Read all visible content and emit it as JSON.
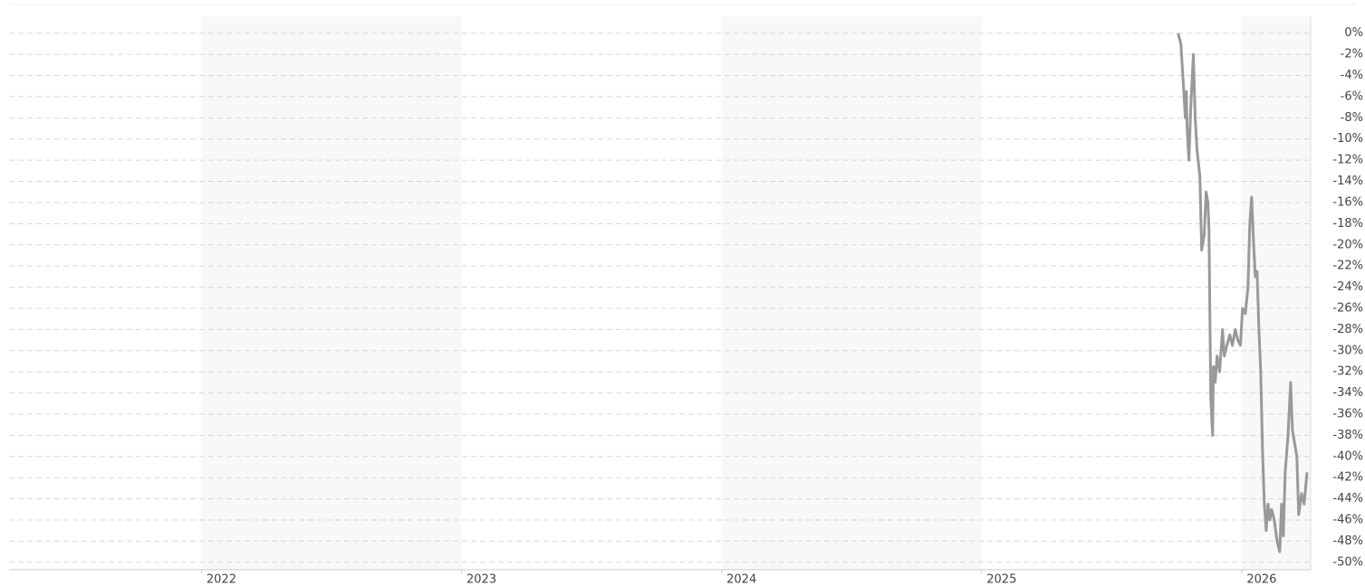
{
  "chart_data": {
    "type": "line",
    "x": [
      2025.755,
      2025.766,
      2025.776,
      2025.783,
      2025.787,
      2025.79,
      2025.797,
      2025.804,
      2025.814,
      2025.821,
      2025.828,
      2025.839,
      2025.846,
      2025.856,
      2025.863,
      2025.87,
      2025.874,
      2025.881,
      2025.888,
      2025.891,
      2025.898,
      2025.905,
      2025.915,
      2025.926,
      2025.933,
      2025.943,
      2025.954,
      2025.964,
      2025.975,
      2025.985,
      2025.995,
      2026.003,
      2026.014,
      2026.024,
      2026.031,
      2026.038,
      2026.045,
      2026.052,
      2026.059,
      2026.066,
      2026.073,
      2026.08,
      2026.087,
      2026.094,
      2026.101,
      2026.108,
      2026.115,
      2026.125,
      2026.136,
      2026.146,
      2026.153,
      2026.16,
      2026.167,
      2026.178,
      2026.188,
      2026.195,
      2026.205,
      2026.212,
      2026.219,
      2026.23,
      2026.24,
      2026.251
    ],
    "series": [
      {
        "color": "#999999",
        "values": [
          0,
          -1,
          -5,
          -8,
          -5.5,
          -9,
          -12,
          -7,
          -2,
          -8,
          -11,
          -13.5,
          -20.5,
          -19,
          -15,
          -16,
          -18.5,
          -34.5,
          -38,
          -31.5,
          -33,
          -30.5,
          -32,
          -28,
          -30.5,
          -29.5,
          -28.5,
          -29.5,
          -28,
          -29,
          -29.5,
          -26,
          -26.5,
          -24,
          -18,
          -15.5,
          -19.5,
          -23,
          -22.5,
          -28,
          -32,
          -39.5,
          -44.5,
          -47,
          -44.5,
          -46,
          -45,
          -46,
          -48,
          -49,
          -44.5,
          -47.5,
          -41.5,
          -38,
          -33,
          -37.5,
          -39,
          -40,
          -45.5,
          -43.5,
          -44.5,
          -41.5
        ]
      }
    ],
    "xlim": [
      2021.26,
      2026.265
    ],
    "xticks": [
      2022,
      2023,
      2024,
      2025,
      2026
    ],
    "ylim": [
      -50.7,
      1.6
    ],
    "yticks": [
      {
        "value": 0,
        "label": "0%"
      },
      {
        "value": -2,
        "label": "-2%"
      },
      {
        "value": -4,
        "label": "-4%"
      },
      {
        "value": -6,
        "label": "-6%"
      },
      {
        "value": -8,
        "label": "-8%"
      },
      {
        "value": -10,
        "label": "-10%"
      },
      {
        "value": -12,
        "label": "-12%"
      },
      {
        "value": -14,
        "label": "-14%"
      },
      {
        "value": -16,
        "label": "-16%"
      },
      {
        "value": -18,
        "label": "-18%"
      },
      {
        "value": -20,
        "label": "-20%"
      },
      {
        "value": -22,
        "label": "-22%"
      },
      {
        "value": -24,
        "label": "-24%"
      },
      {
        "value": -26,
        "label": "-26%"
      },
      {
        "value": -28,
        "label": "-28%"
      },
      {
        "value": -30,
        "label": "-30%"
      },
      {
        "value": -32,
        "label": "-32%"
      },
      {
        "value": -34,
        "label": "-34%"
      },
      {
        "value": -36,
        "label": "-36%"
      },
      {
        "value": -38,
        "label": "-38%"
      },
      {
        "value": -40,
        "label": "-40%"
      },
      {
        "value": -42,
        "label": "-42%"
      },
      {
        "value": -44,
        "label": "-44%"
      },
      {
        "value": -46,
        "label": "-46%"
      },
      {
        "value": -48,
        "label": "-48%"
      },
      {
        "value": -50,
        "label": "-50%"
      }
    ],
    "grid": true,
    "alternate_bands": true
  }
}
